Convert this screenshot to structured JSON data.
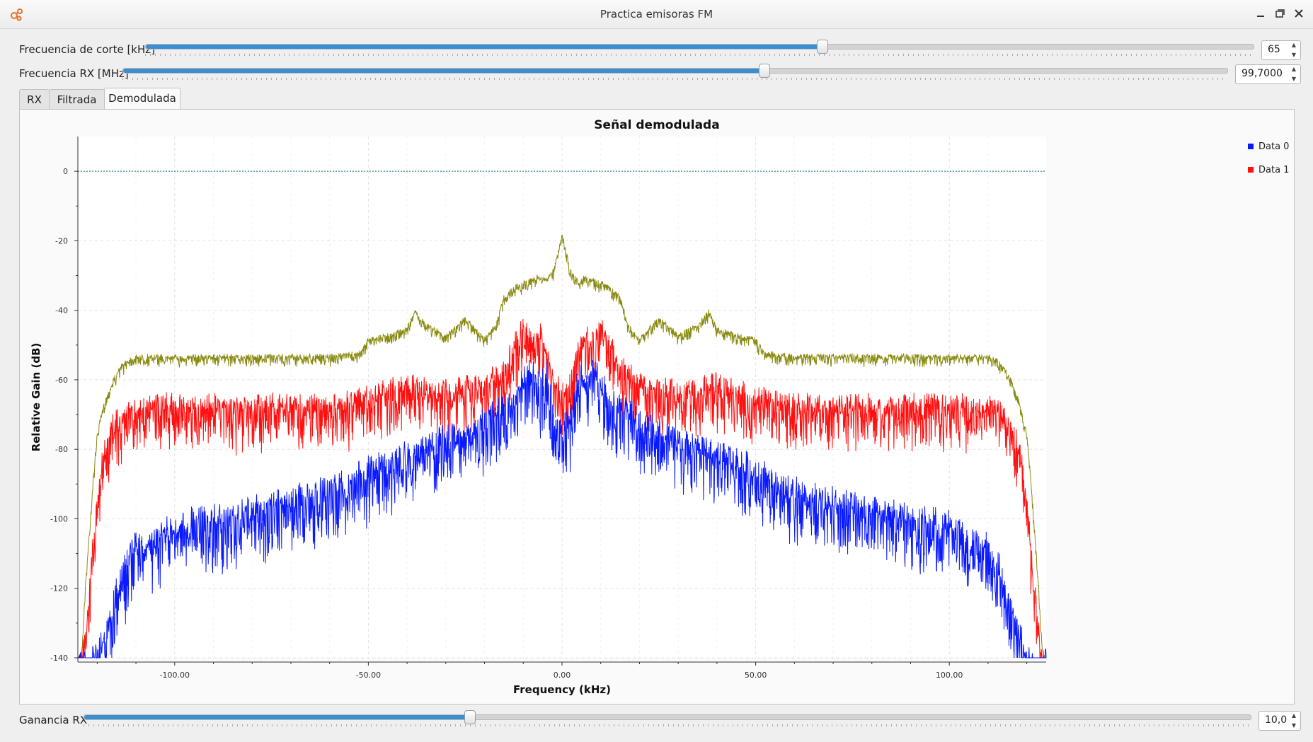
{
  "window": {
    "title": "Practica emisoras FM"
  },
  "controls": {
    "cutoff": {
      "label": "Frecuencia de corte [kHz]",
      "value": "65",
      "fraction": 0.61
    },
    "rx_freq": {
      "label": "Frecuencia RX [MHz]",
      "value": "99,7000",
      "fraction": 0.58
    },
    "gain": {
      "label": "Ganancia RX",
      "value": "10,0",
      "fraction": 0.33
    }
  },
  "tabs": [
    {
      "label": "RX",
      "active": false
    },
    {
      "label": "Filtrada",
      "active": false
    },
    {
      "label": "Demodulada",
      "active": true
    }
  ],
  "chart_data": {
    "type": "line",
    "title": "Señal demodulada",
    "xlabel": "Frequency (kHz)",
    "ylabel": "Relative Gain (dB)",
    "xlim": [
      -125,
      125
    ],
    "ylim": [
      -140,
      10
    ],
    "x_ticks": [
      "-100.00",
      "-50.00",
      "0.00",
      "50.00",
      "100.00"
    ],
    "x_tick_values": [
      -100,
      -50,
      0,
      50,
      100
    ],
    "y_ticks": [
      "0",
      "-20",
      "-40",
      "-60",
      "-80",
      "-100",
      "-120",
      "-140"
    ],
    "y_tick_values": [
      0,
      -20,
      -40,
      -60,
      -80,
      -100,
      -120,
      -140
    ],
    "grid": true,
    "legend_position": "right",
    "reference_line": {
      "y": 0,
      "color": "#2f8fa3"
    },
    "series": [
      {
        "name": "Data 0",
        "color": "#0a1aff",
        "noise": 16,
        "x": [
          -125,
          -122,
          -120,
          -117,
          -115,
          -112,
          -110,
          -105,
          -100,
          -90,
          -80,
          -70,
          -60,
          -55,
          -50,
          -45,
          -40,
          -35,
          -30,
          -25,
          -20,
          -15,
          -12,
          -10,
          -8,
          -6,
          -4,
          -2,
          0,
          2,
          4,
          6,
          8,
          10,
          12,
          15,
          20,
          25,
          30,
          35,
          40,
          45,
          50,
          55,
          60,
          70,
          80,
          90,
          100,
          105,
          110,
          112,
          115,
          117,
          120,
          122,
          125
        ],
        "y": [
          -140,
          -140,
          -138,
          -128,
          -118,
          -110,
          -106,
          -104,
          -100,
          -98,
          -96,
          -93,
          -90,
          -88,
          -84,
          -82,
          -80,
          -78,
          -75,
          -73,
          -70,
          -66,
          -63,
          -58,
          -55,
          -60,
          -57,
          -70,
          -72,
          -70,
          -57,
          -60,
          -55,
          -58,
          -63,
          -66,
          -70,
          -73,
          -75,
          -78,
          -80,
          -82,
          -84,
          -88,
          -90,
          -93,
          -96,
          -98,
          -100,
          -104,
          -106,
          -110,
          -118,
          -128,
          -138,
          -140,
          -140
        ]
      },
      {
        "name": "Data 1",
        "color": "#ff1010",
        "noise": 14,
        "x": [
          -125,
          -124,
          -123,
          -122,
          -121,
          -120,
          -119,
          -118,
          -116,
          -113,
          -110,
          -100,
          -80,
          -60,
          -50,
          -40,
          -30,
          -20,
          -15,
          -12,
          -10,
          -8,
          -6,
          -4,
          -2,
          0,
          2,
          4,
          6,
          8,
          10,
          12,
          15,
          20,
          30,
          40,
          50,
          60,
          80,
          100,
          110,
          113,
          116,
          118,
          119,
          120,
          121,
          122,
          123,
          124,
          125
        ],
        "y": [
          -140,
          -140,
          -130,
          -118,
          -105,
          -95,
          -85,
          -78,
          -72,
          -68,
          -66,
          -66,
          -66,
          -66,
          -64,
          -60,
          -62,
          -60,
          -55,
          -48,
          -44,
          -48,
          -45,
          -50,
          -60,
          -62,
          -60,
          -50,
          -45,
          -48,
          -44,
          -48,
          -55,
          -60,
          -62,
          -60,
          -64,
          -66,
          -66,
          -66,
          -66,
          -68,
          -72,
          -78,
          -85,
          -95,
          -105,
          -118,
          -130,
          -140,
          -140
        ]
      },
      {
        "name": "",
        "color": "#8a8a10",
        "noise": 3,
        "x": [
          -125,
          -124,
          -123,
          -121,
          -120,
          -118,
          -116,
          -114,
          -112,
          -110,
          -100,
          -80,
          -60,
          -52,
          -50,
          -45,
          -40,
          -38,
          -35,
          -30,
          -25,
          -20,
          -17,
          -15,
          -12,
          -10,
          -8,
          -6,
          -4,
          -2,
          -1,
          0,
          1,
          2,
          4,
          6,
          8,
          10,
          12,
          15,
          17,
          20,
          25,
          30,
          35,
          38,
          40,
          45,
          50,
          52,
          60,
          80,
          100,
          110,
          112,
          114,
          116,
          118,
          120,
          121,
          123,
          124,
          125
        ],
        "y": [
          -140,
          -138,
          -118,
          -88,
          -75,
          -66,
          -60,
          -56,
          -54,
          -53,
          -53,
          -53,
          -53,
          -52,
          -48,
          -47,
          -45,
          -40,
          -44,
          -47,
          -42,
          -48,
          -44,
          -36,
          -33,
          -32,
          -31,
          -30,
          -31,
          -28,
          -22,
          -18,
          -22,
          -28,
          -31,
          -30,
          -31,
          -32,
          -33,
          -36,
          -44,
          -48,
          -42,
          -47,
          -44,
          -40,
          -45,
          -47,
          -48,
          -52,
          -53,
          -53,
          -53,
          -53,
          -54,
          -56,
          -60,
          -66,
          -75,
          -88,
          -118,
          -138,
          -140
        ]
      }
    ]
  }
}
